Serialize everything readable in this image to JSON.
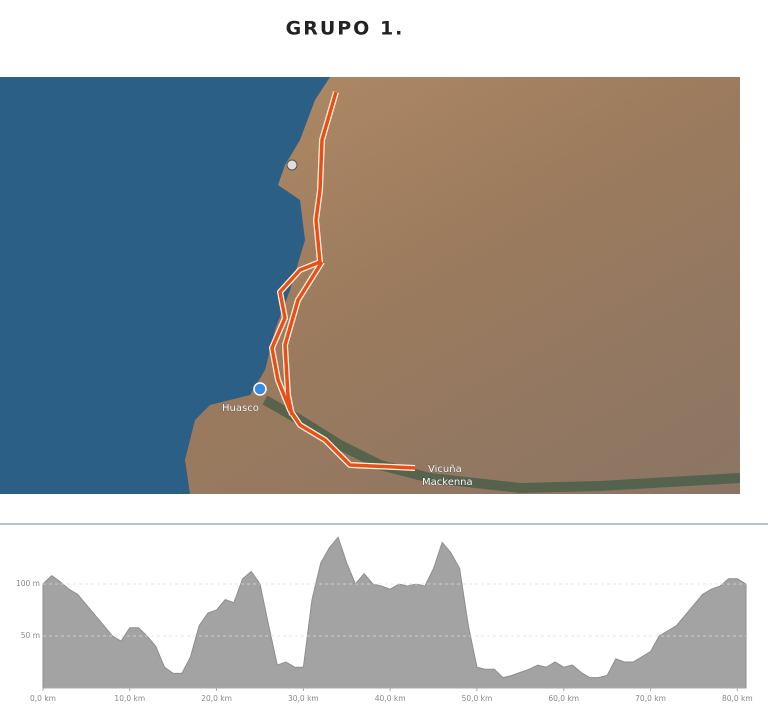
{
  "title": "GRUPO 1.",
  "map": {
    "labels": [
      "Huasco",
      "Vicuña",
      "Mackenna"
    ]
  },
  "chart_data": {
    "type": "area",
    "x": [
      0,
      1,
      2,
      3,
      4,
      5,
      6,
      7,
      8,
      9,
      10,
      11,
      12,
      13,
      14,
      15,
      16,
      17,
      18,
      19,
      20,
      21,
      22,
      23,
      24,
      25,
      26,
      27,
      28,
      29,
      30,
      31,
      32,
      33,
      34,
      35,
      36,
      37,
      38,
      39,
      40,
      41,
      42,
      43,
      44,
      45,
      46,
      47,
      48,
      49,
      50,
      51,
      52,
      53,
      54,
      55,
      56,
      57,
      58,
      59,
      60,
      61,
      62,
      63,
      64,
      65,
      66,
      67,
      68,
      69,
      70,
      71,
      72,
      73,
      74,
      75,
      76,
      77,
      78,
      79,
      80,
      81
    ],
    "values": [
      100,
      108,
      102,
      95,
      90,
      80,
      70,
      60,
      50,
      45,
      58,
      58,
      50,
      40,
      20,
      14,
      14,
      30,
      60,
      72,
      75,
      85,
      82,
      105,
      112,
      100,
      60,
      22,
      25,
      20,
      20,
      85,
      120,
      135,
      145,
      120,
      100,
      110,
      100,
      98,
      95,
      100,
      98,
      100,
      98,
      115,
      140,
      130,
      115,
      60,
      20,
      18,
      18,
      10,
      12,
      15,
      18,
      22,
      20,
      25,
      20,
      22,
      15,
      10,
      10,
      12,
      28,
      25,
      25,
      30,
      35,
      50,
      55,
      60,
      70,
      80,
      90,
      95,
      98,
      105,
      105,
      100
    ],
    "color": "#a3a3a3",
    "xlim": [
      0,
      81
    ],
    "ylim": [
      0,
      150
    ],
    "xticks": [
      {
        "value": 0,
        "label": "0,0 km"
      },
      {
        "value": 10,
        "label": "10,0 km"
      },
      {
        "value": 20,
        "label": "20,0 km"
      },
      {
        "value": 30,
        "label": "30,0 km"
      },
      {
        "value": 40,
        "label": "40,0 km"
      },
      {
        "value": 50,
        "label": "50,0 km"
      },
      {
        "value": 60,
        "label": "60,0 km"
      },
      {
        "value": 70,
        "label": "70,0 km"
      },
      {
        "value": 80,
        "label": "80,0 km"
      }
    ],
    "yticks": [
      {
        "value": 50,
        "label": "50 m"
      },
      {
        "value": 100,
        "label": "100 m"
      }
    ],
    "grid": true
  }
}
